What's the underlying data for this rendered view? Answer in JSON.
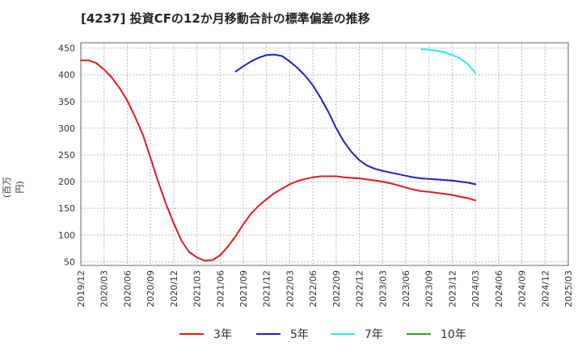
{
  "chart_data": {
    "type": "line",
    "title": "[4237]  投資CFの12か月移動合計の標準偏差の推移",
    "ylabel": "(百万円)",
    "xlabel": "",
    "ylim": [
      43,
      460
    ],
    "yticks": [
      50,
      100,
      150,
      200,
      250,
      300,
      350,
      400,
      450
    ],
    "x_categories": [
      "2019/12",
      "2020/03",
      "2020/06",
      "2020/09",
      "2020/12",
      "2021/03",
      "2021/06",
      "2021/09",
      "2021/12",
      "2022/03",
      "2022/06",
      "2022/09",
      "2022/12",
      "2023/03",
      "2023/06",
      "2023/09",
      "2023/12",
      "2024/03",
      "2024/06",
      "2024/09",
      "2024/12",
      "2025/03"
    ],
    "grid": true,
    "legend_position": "bottom",
    "series": [
      {
        "name": "3年",
        "color": "#e31a1c",
        "points": [
          [
            0,
            427
          ],
          [
            0.33,
            427
          ],
          [
            0.67,
            422
          ],
          [
            1,
            410
          ],
          [
            1.33,
            395
          ],
          [
            1.67,
            375
          ],
          [
            2,
            352
          ],
          [
            2.33,
            322
          ],
          [
            2.67,
            288
          ],
          [
            3,
            245
          ],
          [
            3.33,
            200
          ],
          [
            3.67,
            158
          ],
          [
            4,
            122
          ],
          [
            4.33,
            90
          ],
          [
            4.67,
            68
          ],
          [
            5,
            58
          ],
          [
            5.33,
            52
          ],
          [
            5.67,
            53
          ],
          [
            6,
            62
          ],
          [
            6.33,
            78
          ],
          [
            6.67,
            98
          ],
          [
            7,
            120
          ],
          [
            7.33,
            140
          ],
          [
            7.67,
            155
          ],
          [
            8,
            167
          ],
          [
            8.33,
            178
          ],
          [
            8.67,
            187
          ],
          [
            9,
            195
          ],
          [
            9.33,
            201
          ],
          [
            9.67,
            205
          ],
          [
            10,
            208
          ],
          [
            10.33,
            210
          ],
          [
            10.67,
            210
          ],
          [
            11,
            210
          ],
          [
            11.33,
            208
          ],
          [
            11.67,
            207
          ],
          [
            12,
            206
          ],
          [
            12.33,
            204
          ],
          [
            12.67,
            202
          ],
          [
            13,
            200
          ],
          [
            13.33,
            197
          ],
          [
            13.67,
            193
          ],
          [
            14,
            189
          ],
          [
            14.33,
            185
          ],
          [
            14.67,
            182
          ],
          [
            15,
            181
          ],
          [
            15.33,
            179
          ],
          [
            15.67,
            177
          ],
          [
            16,
            175
          ],
          [
            16.33,
            172
          ],
          [
            16.67,
            169
          ],
          [
            17,
            165
          ]
        ]
      },
      {
        "name": "5年",
        "color": "#1f1fcc",
        "points": [
          [
            6.67,
            406
          ],
          [
            7,
            416
          ],
          [
            7.33,
            425
          ],
          [
            7.67,
            432
          ],
          [
            8,
            437
          ],
          [
            8.33,
            438
          ],
          [
            8.67,
            435
          ],
          [
            9,
            425
          ],
          [
            9.33,
            413
          ],
          [
            9.67,
            398
          ],
          [
            10,
            380
          ],
          [
            10.33,
            357
          ],
          [
            10.67,
            330
          ],
          [
            11,
            300
          ],
          [
            11.33,
            275
          ],
          [
            11.67,
            255
          ],
          [
            12,
            240
          ],
          [
            12.33,
            230
          ],
          [
            12.67,
            224
          ],
          [
            13,
            220
          ],
          [
            13.33,
            217
          ],
          [
            13.67,
            214
          ],
          [
            14,
            211
          ],
          [
            14.33,
            208
          ],
          [
            14.67,
            206
          ],
          [
            15,
            205
          ],
          [
            15.33,
            204
          ],
          [
            15.67,
            203
          ],
          [
            16,
            202
          ],
          [
            16.33,
            200
          ],
          [
            16.67,
            198
          ],
          [
            17,
            195
          ]
        ]
      },
      {
        "name": "7年",
        "color": "#2ee8f0",
        "points": [
          [
            14.67,
            448
          ],
          [
            15,
            447
          ],
          [
            15.33,
            445
          ],
          [
            15.67,
            442
          ],
          [
            16,
            437
          ],
          [
            16.33,
            431
          ],
          [
            16.67,
            420
          ],
          [
            17,
            403
          ]
        ]
      },
      {
        "name": "10年",
        "color": "#2ca02c",
        "points": []
      }
    ]
  }
}
